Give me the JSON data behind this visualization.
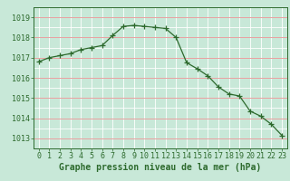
{
  "x": [
    0,
    1,
    2,
    3,
    4,
    5,
    6,
    7,
    8,
    9,
    10,
    11,
    12,
    13,
    14,
    15,
    16,
    17,
    18,
    19,
    20,
    21,
    22,
    23
  ],
  "y": [
    1016.8,
    1017.0,
    1017.1,
    1017.2,
    1017.4,
    1017.5,
    1017.6,
    1018.1,
    1018.55,
    1018.6,
    1018.55,
    1018.5,
    1018.45,
    1018.0,
    1016.75,
    1016.45,
    1016.1,
    1015.55,
    1015.2,
    1015.1,
    1014.35,
    1014.1,
    1013.7,
    1013.15
  ],
  "line_color": "#2d6a2d",
  "marker": "+",
  "marker_size": 4,
  "bg_color": "#c8e8d8",
  "grid_white_color": "#ffffff",
  "grid_red_color": "#e8a0a0",
  "ylim": [
    1012.5,
    1019.5
  ],
  "xlim": [
    -0.5,
    23.5
  ],
  "yticks": [
    1013,
    1014,
    1015,
    1016,
    1017,
    1018,
    1019
  ],
  "xticks": [
    0,
    1,
    2,
    3,
    4,
    5,
    6,
    7,
    8,
    9,
    10,
    11,
    12,
    13,
    14,
    15,
    16,
    17,
    18,
    19,
    20,
    21,
    22,
    23
  ],
  "xlabel": "Graphe pression niveau de la mer (hPa)",
  "xlabel_fontsize": 7,
  "tick_fontsize": 6,
  "label_color": "#2d6a2d"
}
